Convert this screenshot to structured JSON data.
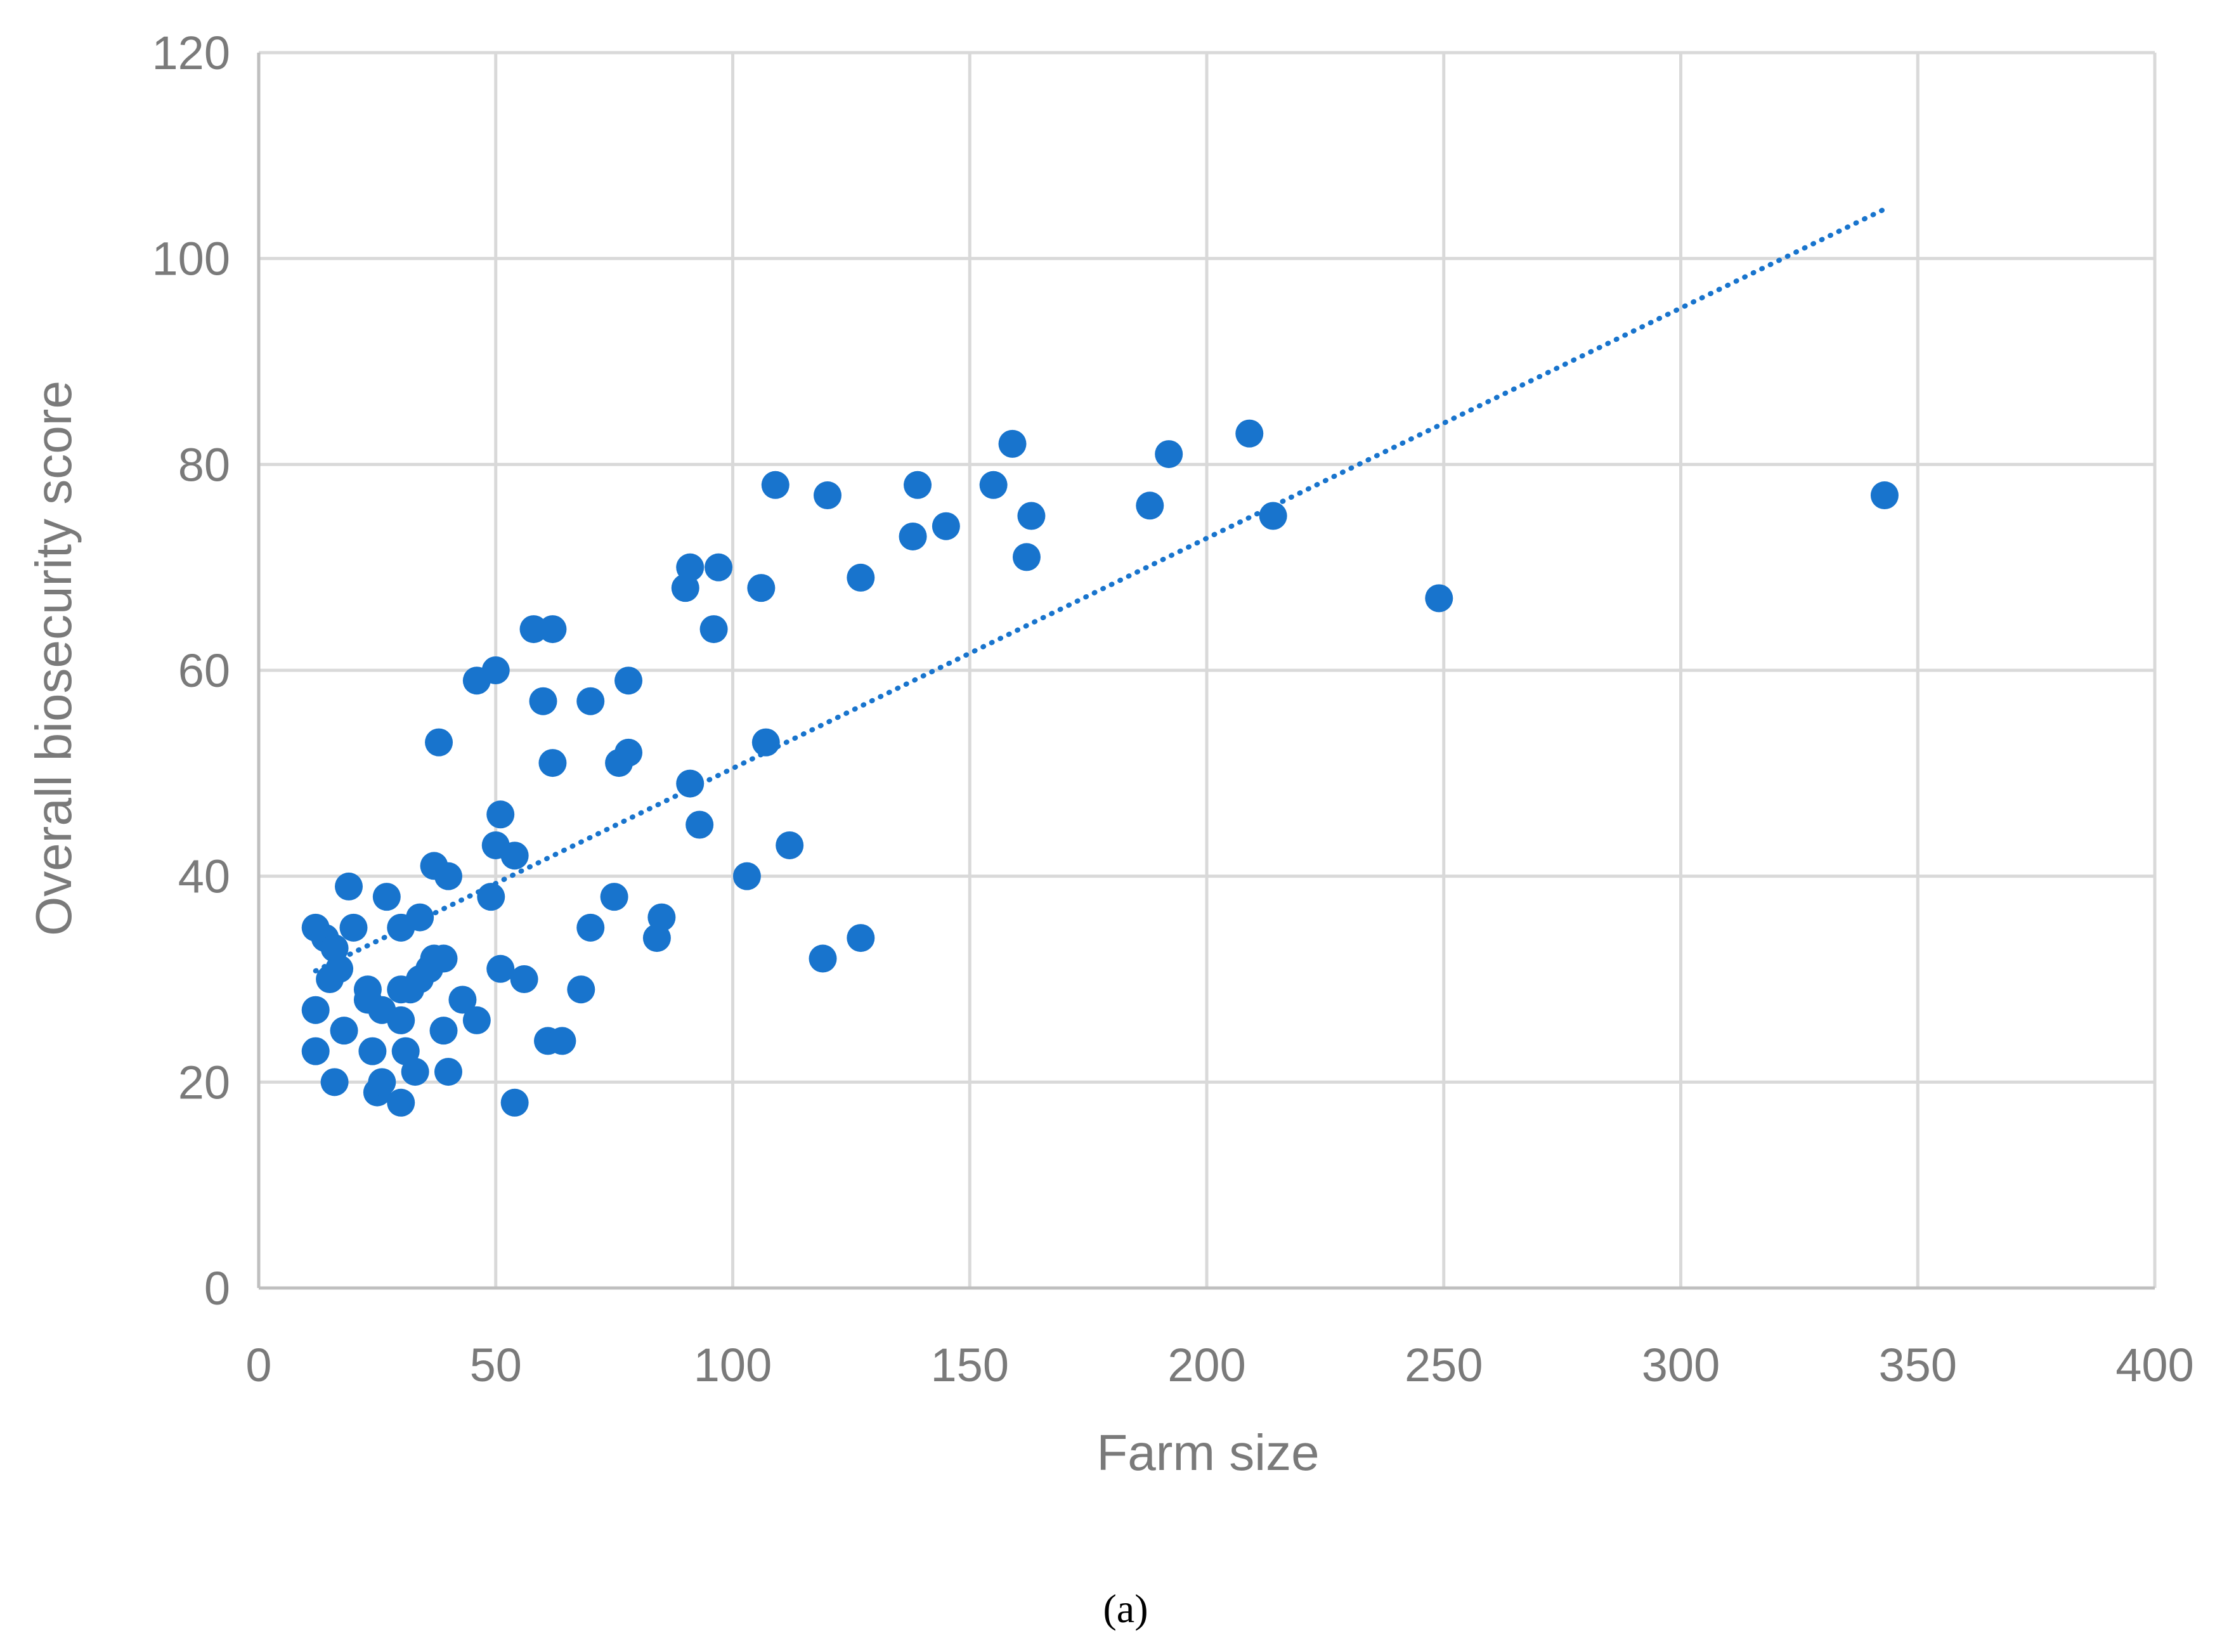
{
  "chart_data": {
    "type": "scatter",
    "title": "",
    "xlabel": "Farm size",
    "ylabel": "Overall biosecurity score",
    "panel_label": "(a)",
    "xlim": [
      0,
      400
    ],
    "ylim": [
      0,
      120
    ],
    "x_ticks": [
      0,
      50,
      100,
      150,
      200,
      250,
      300,
      350,
      400
    ],
    "y_ticks": [
      0,
      20,
      40,
      60,
      80,
      100,
      120
    ],
    "grid": true,
    "legend": "none",
    "colors": {
      "points": "#1874cd",
      "trend": "#1874cd"
    },
    "trendline": {
      "style": "dotted",
      "x": [
        12,
        343
      ],
      "y": [
        30.8,
        104.8
      ]
    },
    "points": [
      {
        "x": 12,
        "y": 35
      },
      {
        "x": 12,
        "y": 27
      },
      {
        "x": 12,
        "y": 23
      },
      {
        "x": 14,
        "y": 34
      },
      {
        "x": 15,
        "y": 30
      },
      {
        "x": 16,
        "y": 33
      },
      {
        "x": 16,
        "y": 20
      },
      {
        "x": 17,
        "y": 31
      },
      {
        "x": 18,
        "y": 25
      },
      {
        "x": 19,
        "y": 39
      },
      {
        "x": 20,
        "y": 35
      },
      {
        "x": 23,
        "y": 29
      },
      {
        "x": 23,
        "y": 28
      },
      {
        "x": 24,
        "y": 23
      },
      {
        "x": 25,
        "y": 19
      },
      {
        "x": 26,
        "y": 20
      },
      {
        "x": 26,
        "y": 27
      },
      {
        "x": 27,
        "y": 38
      },
      {
        "x": 30,
        "y": 35
      },
      {
        "x": 30,
        "y": 29
      },
      {
        "x": 30,
        "y": 26
      },
      {
        "x": 30,
        "y": 18
      },
      {
        "x": 31,
        "y": 23
      },
      {
        "x": 32,
        "y": 29
      },
      {
        "x": 33,
        "y": 21
      },
      {
        "x": 34,
        "y": 36
      },
      {
        "x": 34,
        "y": 30
      },
      {
        "x": 36,
        "y": 31
      },
      {
        "x": 37,
        "y": 32
      },
      {
        "x": 37,
        "y": 41
      },
      {
        "x": 38,
        "y": 53
      },
      {
        "x": 39,
        "y": 32
      },
      {
        "x": 39,
        "y": 25
      },
      {
        "x": 40,
        "y": 40
      },
      {
        "x": 40,
        "y": 21
      },
      {
        "x": 43,
        "y": 28
      },
      {
        "x": 46,
        "y": 26
      },
      {
        "x": 46,
        "y": 59
      },
      {
        "x": 49,
        "y": 38
      },
      {
        "x": 50,
        "y": 60
      },
      {
        "x": 50,
        "y": 43
      },
      {
        "x": 51,
        "y": 46
      },
      {
        "x": 51,
        "y": 31
      },
      {
        "x": 54,
        "y": 42
      },
      {
        "x": 54,
        "y": 18
      },
      {
        "x": 56,
        "y": 30
      },
      {
        "x": 58,
        "y": 64
      },
      {
        "x": 60,
        "y": 57
      },
      {
        "x": 61,
        "y": 24
      },
      {
        "x": 62,
        "y": 64
      },
      {
        "x": 62,
        "y": 51
      },
      {
        "x": 64,
        "y": 24
      },
      {
        "x": 68,
        "y": 29
      },
      {
        "x": 70,
        "y": 57
      },
      {
        "x": 70,
        "y": 35
      },
      {
        "x": 75,
        "y": 38
      },
      {
        "x": 76,
        "y": 51
      },
      {
        "x": 78,
        "y": 59
      },
      {
        "x": 78,
        "y": 52
      },
      {
        "x": 84,
        "y": 34
      },
      {
        "x": 85,
        "y": 36
      },
      {
        "x": 90,
        "y": 68
      },
      {
        "x": 91,
        "y": 70
      },
      {
        "x": 91,
        "y": 49
      },
      {
        "x": 93,
        "y": 45
      },
      {
        "x": 96,
        "y": 64
      },
      {
        "x": 97,
        "y": 70
      },
      {
        "x": 103,
        "y": 40
      },
      {
        "x": 106,
        "y": 68
      },
      {
        "x": 107,
        "y": 53
      },
      {
        "x": 109,
        "y": 78
      },
      {
        "x": 112,
        "y": 43
      },
      {
        "x": 119,
        "y": 32
      },
      {
        "x": 120,
        "y": 77
      },
      {
        "x": 127,
        "y": 69
      },
      {
        "x": 127,
        "y": 34
      },
      {
        "x": 138,
        "y": 73
      },
      {
        "x": 139,
        "y": 78
      },
      {
        "x": 145,
        "y": 74
      },
      {
        "x": 155,
        "y": 78
      },
      {
        "x": 159,
        "y": 82
      },
      {
        "x": 162,
        "y": 71
      },
      {
        "x": 163,
        "y": 75
      },
      {
        "x": 188,
        "y": 76
      },
      {
        "x": 192,
        "y": 81
      },
      {
        "x": 209,
        "y": 83
      },
      {
        "x": 214,
        "y": 75
      },
      {
        "x": 249,
        "y": 67
      },
      {
        "x": 343,
        "y": 77
      }
    ]
  }
}
